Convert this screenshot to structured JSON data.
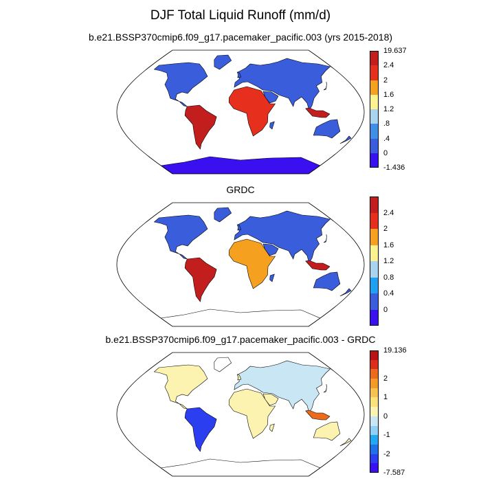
{
  "title": "DJF Total Liquid Runoff (mm/d)",
  "panels": [
    {
      "id": "model",
      "title": "b.e21.BSSP370cmip6.f09_g17.pacemaker_pacific.003 (yrs 2015-2018)",
      "colorbar": {
        "colors": [
          "#3a10f0",
          "#3a5ddc",
          "#3f8ee8",
          "#a8d4f0",
          "#fdf290",
          "#f6a020",
          "#e62f1c",
          "#c21e1e"
        ],
        "labels": [
          "-1.436",
          "0",
          ".4",
          ".8",
          "1.2",
          "1.6",
          "2",
          "2.4",
          "19.637"
        ]
      }
    },
    {
      "id": "obs",
      "title": "GRDC",
      "colorbar": {
        "colors": [
          "#3a10f0",
          "#3a5ddc",
          "#1fa0f0",
          "#a8d4f0",
          "#fdf290",
          "#f6a020",
          "#e62f1c",
          "#c21e1e"
        ],
        "labels": [
          "",
          "0",
          "0.4",
          "0.8",
          "1.2",
          "1.6",
          "2",
          "2.4",
          ""
        ]
      }
    },
    {
      "id": "diff",
      "title": "b.e21.BSSP370cmip6.f09_g17.pacemaker_pacific.003 - GRDC",
      "colorbar": {
        "colors": [
          "#3a10f0",
          "#2b3ff0",
          "#2070e8",
          "#20a8f0",
          "#8fd0f4",
          "#c8e6f4",
          "#fdf3b0",
          "#fde17a",
          "#f8c250",
          "#f49a28",
          "#ec6a1c",
          "#dc2d1c",
          "#b81414"
        ],
        "labels": [
          "-7.587",
          "",
          "-2",
          "",
          "-1",
          "",
          "0",
          "",
          "1",
          "",
          "2",
          "",
          "",
          "19.136"
        ]
      }
    }
  ]
}
